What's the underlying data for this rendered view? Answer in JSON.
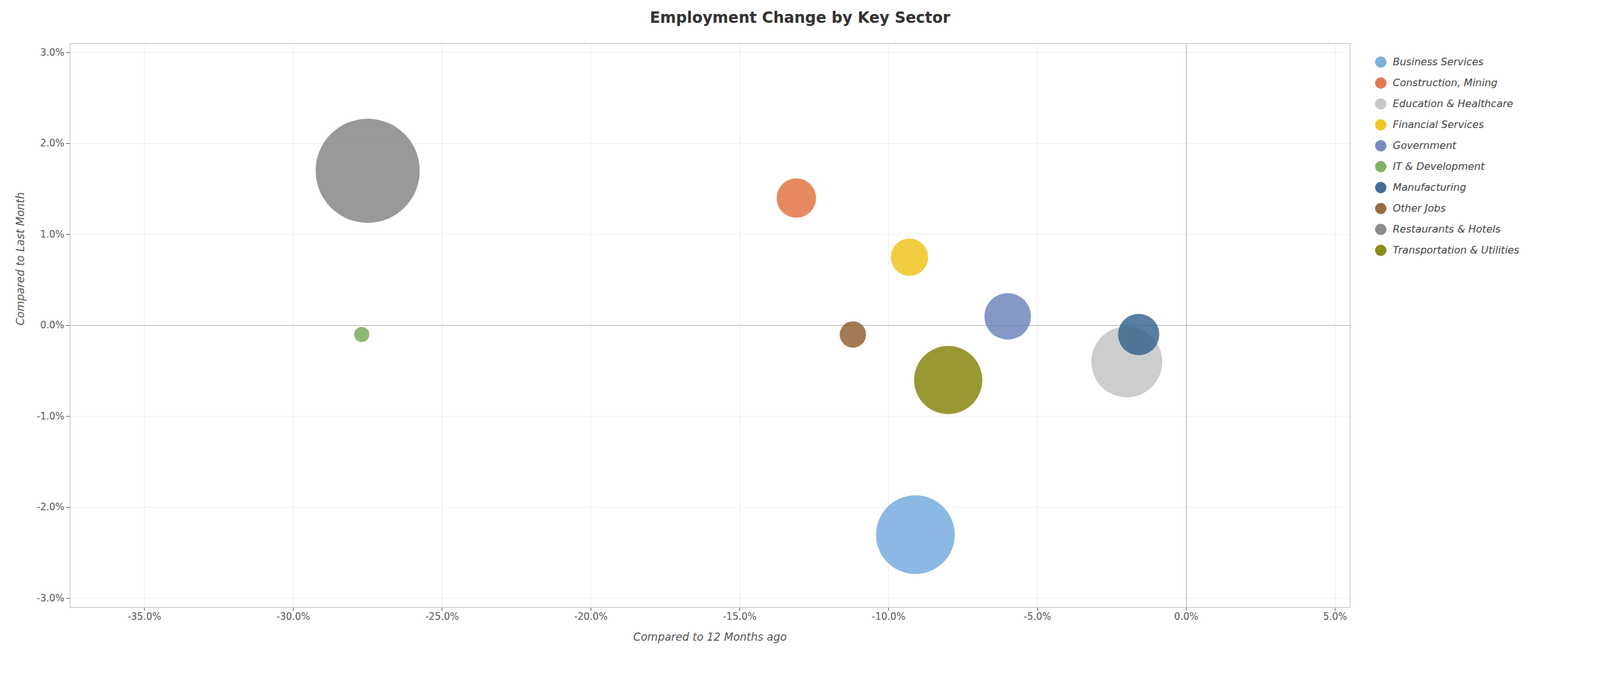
{
  "chart_data": {
    "type": "scatter",
    "title": "Employment Change by Key Sector",
    "xlabel": "Compared to 12 Months ago",
    "ylabel": "Compared to Last Month",
    "xlim": [
      -0.375,
      0.055
    ],
    "ylim": [
      -0.031,
      0.031
    ],
    "xticks": [
      {
        "value": -0.35,
        "label": "-35.0%"
      },
      {
        "value": -0.3,
        "label": "-30.0%"
      },
      {
        "value": -0.25,
        "label": "-25.0%"
      },
      {
        "value": -0.2,
        "label": "-20.0%"
      },
      {
        "value": -0.15,
        "label": "-15.0%"
      },
      {
        "value": -0.1,
        "label": "-10.0%"
      },
      {
        "value": -0.05,
        "label": "-5.0%"
      },
      {
        "value": 0.0,
        "label": "0.0%"
      },
      {
        "value": 0.05,
        "label": "5.0%"
      }
    ],
    "yticks": [
      {
        "value": -0.03,
        "label": "-3.0%"
      },
      {
        "value": -0.02,
        "label": "-2.0%"
      },
      {
        "value": -0.01,
        "label": "-1.0%"
      },
      {
        "value": 0.0,
        "label": "0.0%"
      },
      {
        "value": 0.01,
        "label": "1.0%"
      },
      {
        "value": 0.02,
        "label": "2.0%"
      },
      {
        "value": 0.03,
        "label": "3.0%"
      }
    ],
    "grid": true,
    "legend": "right",
    "series": [
      {
        "name": "Business Services",
        "color": "#6fa8dc",
        "x": [
          -0.091
        ],
        "y": [
          -0.023
        ],
        "size": [
          8000
        ]
      },
      {
        "name": "Construction, Mining",
        "color": "#e06c3a",
        "x": [
          -0.131
        ],
        "y": [
          0.014
        ],
        "size": [
          2000
        ]
      },
      {
        "name": "Education & Healthcare",
        "color": "#c0c0c0",
        "x": [
          -0.02
        ],
        "y": [
          -0.004
        ],
        "size": [
          6500
        ]
      },
      {
        "name": "Financial Services",
        "color": "#f0c010",
        "x": [
          -0.093
        ],
        "y": [
          0.0075
        ],
        "size": [
          1800
        ]
      },
      {
        "name": "Government",
        "color": "#6680b8",
        "x": [
          -0.06
        ],
        "y": [
          0.001
        ],
        "size": [
          2800
        ]
      },
      {
        "name": "IT & Development",
        "color": "#70a850",
        "x": [
          -0.277
        ],
        "y": [
          -0.001
        ],
        "size": [
          300
        ]
      },
      {
        "name": "Manufacturing",
        "color": "#2e5f8a",
        "x": [
          -0.016
        ],
        "y": [
          -0.001
        ],
        "size": [
          2200
        ]
      },
      {
        "name": "Other Jobs",
        "color": "#8b5a2b",
        "x": [
          -0.112
        ],
        "y": [
          -0.001
        ],
        "size": [
          900
        ]
      },
      {
        "name": "Restaurants & Hotels",
        "color": "#808080",
        "x": [
          -0.275
        ],
        "y": [
          0.017
        ],
        "size": [
          14000
        ]
      },
      {
        "name": "Transportation & Utilities",
        "color": "#808000",
        "x": [
          -0.08
        ],
        "y": [
          -0.006
        ],
        "size": [
          6000
        ]
      }
    ]
  }
}
